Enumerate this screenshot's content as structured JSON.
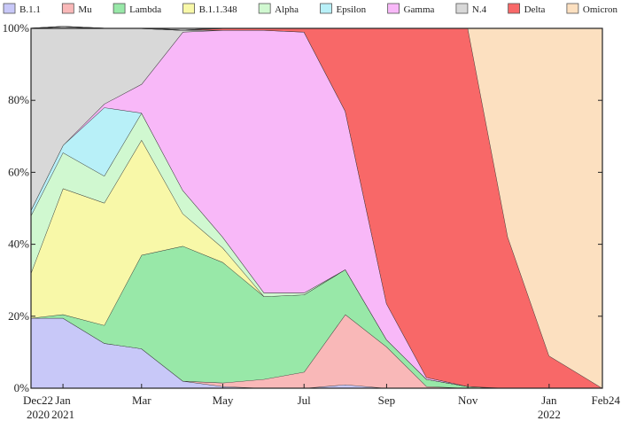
{
  "chart_data": {
    "type": "area",
    "stacked": true,
    "title": "",
    "xlabel": "",
    "ylabel": "",
    "ylim": [
      0,
      100
    ],
    "y_ticks": [
      "0%",
      "20%",
      "40%",
      "60%",
      "80%",
      "100%"
    ],
    "x_ticks": [
      {
        "date": "2020-12-22",
        "line1": "Dec22",
        "line2": "2020"
      },
      {
        "date": "2021-01-15",
        "line1": "Jan",
        "line2": "2021"
      },
      {
        "date": "2021-03-15",
        "line1": "Mar",
        "line2": ""
      },
      {
        "date": "2021-05-15",
        "line1": "May",
        "line2": ""
      },
      {
        "date": "2021-07-15",
        "line1": "Jul",
        "line2": ""
      },
      {
        "date": "2021-09-15",
        "line1": "Sep",
        "line2": ""
      },
      {
        "date": "2021-11-15",
        "line1": "Nov",
        "line2": ""
      },
      {
        "date": "2022-01-15",
        "line1": "Jan",
        "line2": "2022"
      },
      {
        "date": "2022-02-24",
        "line1": "Feb24",
        "line2": ""
      }
    ],
    "legend_position": "top",
    "grid": false,
    "x": [
      "2020-12-22",
      "2021-01-15",
      "2021-02-15",
      "2021-03-15",
      "2021-04-15",
      "2021-05-15",
      "2021-06-15",
      "2021-07-15",
      "2021-08-15",
      "2021-09-15",
      "2021-10-15",
      "2021-11-15",
      "2021-12-15",
      "2022-01-15",
      "2022-02-24"
    ],
    "series": [
      {
        "name": "B.1.1",
        "color": "#c8c8f8",
        "values": [
          19.5,
          19.5,
          12.5,
          11,
          2,
          0.5,
          0,
          0,
          1,
          0,
          0,
          0,
          0,
          0,
          0
        ]
      },
      {
        "name": "Mu",
        "color": "#f9b8b8",
        "values": [
          0,
          0,
          0,
          0,
          0,
          1,
          2.5,
          4.5,
          19.5,
          11.5,
          0.5,
          0,
          0,
          0,
          0
        ]
      },
      {
        "name": "Lambda",
        "color": "#98e8a8",
        "values": [
          0,
          1,
          5,
          26,
          37.5,
          33.5,
          23,
          21.5,
          12.5,
          2,
          2,
          0.5,
          0,
          0,
          0
        ]
      },
      {
        "name": "B.1.1.348",
        "color": "#f8f8a8",
        "values": [
          12.5,
          35,
          34,
          32,
          9,
          4,
          0,
          0,
          0,
          0,
          0,
          0,
          0,
          0,
          0
        ]
      },
      {
        "name": "Alpha",
        "color": "#d0f8d0",
        "values": [
          16,
          10,
          7.5,
          7.5,
          6.5,
          3,
          1,
          0.5,
          0,
          0,
          0,
          0,
          0,
          0,
          0
        ]
      },
      {
        "name": "Epsilon",
        "color": "#b8f0f8",
        "values": [
          1.5,
          2,
          19,
          0,
          0,
          0,
          0,
          0,
          0,
          0,
          0,
          0,
          0,
          0,
          0
        ]
      },
      {
        "name": "Gamma",
        "color": "#f8b8f8",
        "values": [
          0,
          0,
          1,
          8,
          44,
          57.5,
          73,
          72.5,
          44,
          10,
          0.5,
          0,
          0,
          0,
          0
        ]
      },
      {
        "name": "N.4",
        "color": "#d8d8d8",
        "values": [
          50.5,
          33,
          21,
          15.5,
          0.5,
          0,
          0,
          0,
          0,
          0,
          0,
          0,
          0,
          0,
          0
        ]
      },
      {
        "name": "Delta",
        "color": "#f86868",
        "values": [
          0,
          0,
          0,
          0,
          0,
          0.5,
          0.5,
          1,
          23,
          76.5,
          97,
          99.5,
          42,
          9,
          0
        ]
      },
      {
        "name": "Omicron",
        "color": "#fce0c0",
        "values": [
          0,
          0,
          0,
          0,
          0,
          0,
          0,
          0,
          0,
          0,
          0,
          0,
          58,
          91,
          100
        ]
      }
    ]
  }
}
